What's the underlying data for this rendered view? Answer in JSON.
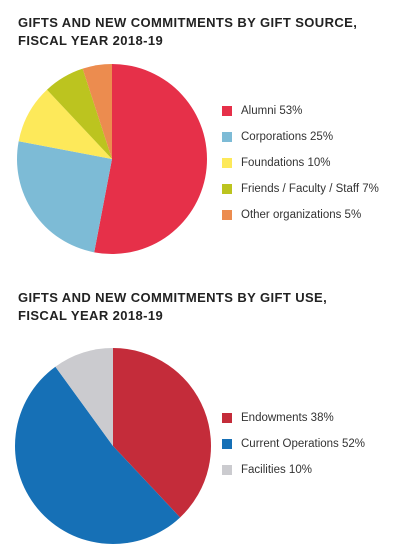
{
  "chart_data": [
    {
      "type": "pie",
      "title": [
        "GIFTS AND NEW COMMITMENTS BY GIFT SOURCE,",
        "FISCAL YEAR 2018-19"
      ],
      "slices": [
        {
          "label": "Alumni 53%",
          "value": 53,
          "color": "#e63049"
        },
        {
          "label": "Corporations 25%",
          "value": 25,
          "color": "#7dbbd6"
        },
        {
          "label": "Foundations 10%",
          "value": 10,
          "color": "#fde95a"
        },
        {
          "label": "Friends / Faculty / Staff 7%",
          "value": 7,
          "color": "#bcc41f"
        },
        {
          "label": "Other organizations 5%",
          "value": 5,
          "color": "#ec8c4f"
        }
      ],
      "legend_position": "right"
    },
    {
      "type": "pie",
      "title": [
        "GIFTS AND NEW COMMITMENTS BY GIFT USE,",
        "FISCAL YEAR 2018-19"
      ],
      "slices": [
        {
          "label": "Endowments 38%",
          "value": 38,
          "color": "#c42c3a"
        },
        {
          "label": "Current Operations 52%",
          "value": 52,
          "color": "#1670b6"
        },
        {
          "label": "Facilities 10%",
          "value": 10,
          "color": "#cbcbcf"
        }
      ],
      "legend_position": "right"
    }
  ]
}
